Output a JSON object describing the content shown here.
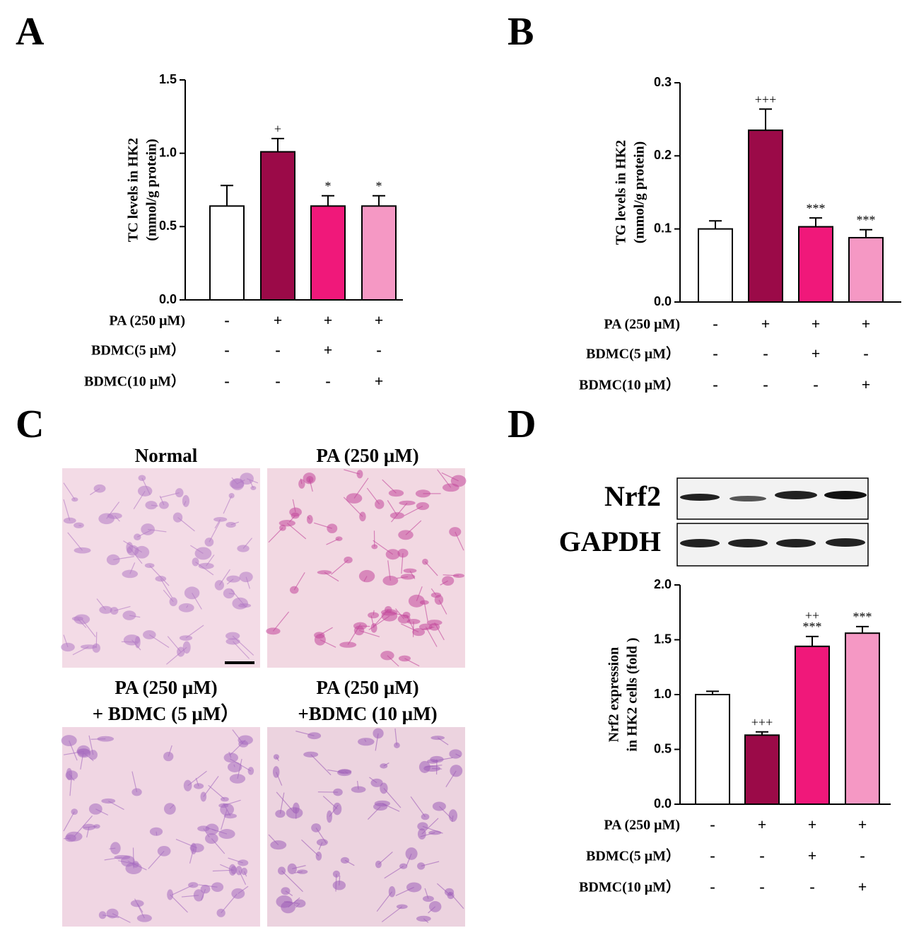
{
  "panel_labels": [
    "A",
    "B",
    "C",
    "D"
  ],
  "chart_data": [
    {
      "type": "bar",
      "ylabel": [
        "TC levels in HK2",
        "(mmol/g protein)"
      ],
      "values": [
        0.64,
        1.01,
        0.64,
        0.64
      ],
      "errors": [
        0.14,
        0.09,
        0.07,
        0.07
      ],
      "colors": [
        "#ffffff",
        "#9b0a48",
        "#f0187a",
        "#f598c4"
      ],
      "annotations": [
        null,
        [
          "+"
        ],
        [
          "*"
        ],
        [
          "*"
        ]
      ],
      "ylim": [
        0,
        1.5
      ],
      "yticks": [
        {
          "value": 0,
          "label": "0.0"
        },
        0.5,
        {
          "value": 1,
          "label": "1.0"
        },
        1.5
      ],
      "treatments": [
        {
          "label": "PA (250 μM)",
          "signs": [
            "-",
            "+",
            "+",
            "+"
          ]
        },
        {
          "label": "BDMC(5 μM）",
          "signs": [
            "-",
            "-",
            "+",
            "-"
          ]
        },
        {
          "label": "BDMC(10 μM）",
          "signs": [
            "-",
            "-",
            "-",
            "+"
          ]
        }
      ]
    },
    {
      "type": "bar",
      "ylabel": [
        "TG levels in HK2",
        "(mmol/g protein)"
      ],
      "values": [
        0.1,
        0.235,
        0.103,
        0.088
      ],
      "errors": [
        0.011,
        0.029,
        0.012,
        0.011
      ],
      "colors": [
        "#ffffff",
        "#9b0a48",
        "#f0187a",
        "#f598c4"
      ],
      "annotations": [
        null,
        [
          "+++"
        ],
        [
          "***"
        ],
        [
          "***"
        ]
      ],
      "ylim": [
        0,
        0.3
      ],
      "yticks": [
        {
          "value": 0,
          "label": "0.0"
        },
        0.1,
        0.2,
        0.3
      ],
      "treatments": [
        {
          "label": "PA (250 μM)",
          "signs": [
            "-",
            "+",
            "+",
            "+"
          ]
        },
        {
          "label": "BDMC(5 μM）",
          "signs": [
            "-",
            "-",
            "+",
            "-"
          ]
        },
        {
          "label": "BDMC(10 μM）",
          "signs": [
            "-",
            "-",
            "-",
            "+"
          ]
        }
      ]
    },
    {
      "type": "bar",
      "ylabel": [
        "Nrf2 expression",
        "in HK2 cells (fold )"
      ],
      "values": [
        1.0,
        0.63,
        1.44,
        1.56
      ],
      "errors": [
        0.03,
        0.03,
        0.09,
        0.06
      ],
      "colors": [
        "#ffffff",
        "#9b0a48",
        "#f0187a",
        "#f598c4"
      ],
      "annotations": [
        null,
        [
          "+++"
        ],
        [
          "++",
          "***"
        ],
        [
          "***"
        ]
      ],
      "ylim": [
        0,
        2
      ],
      "yticks": [
        {
          "value": 0,
          "label": "0.0"
        },
        0.5,
        {
          "value": 1,
          "label": "1.0"
        },
        1.5,
        {
          "value": 2,
          "label": "2.0"
        }
      ],
      "treatments": [
        {
          "label": "PA (250 μM)",
          "signs": [
            "-",
            "+",
            "+",
            "+"
          ]
        },
        {
          "label": "BDMC(5 μM）",
          "signs": [
            "-",
            "-",
            "+",
            "-"
          ]
        },
        {
          "label": "BDMC(10 μM）",
          "signs": [
            "-",
            "-",
            "-",
            "+"
          ]
        }
      ]
    }
  ],
  "micrographs": {
    "labels": [
      [
        "Normal"
      ],
      [
        "PA (250 μM)"
      ],
      [
        "PA (250 μM)",
        "+ BDMC (5 μM）"
      ],
      [
        "PA (250 μM)",
        "+BDMC (10 μM)"
      ]
    ]
  },
  "blot": {
    "labels": [
      "Nrf2",
      "GAPDH"
    ]
  }
}
